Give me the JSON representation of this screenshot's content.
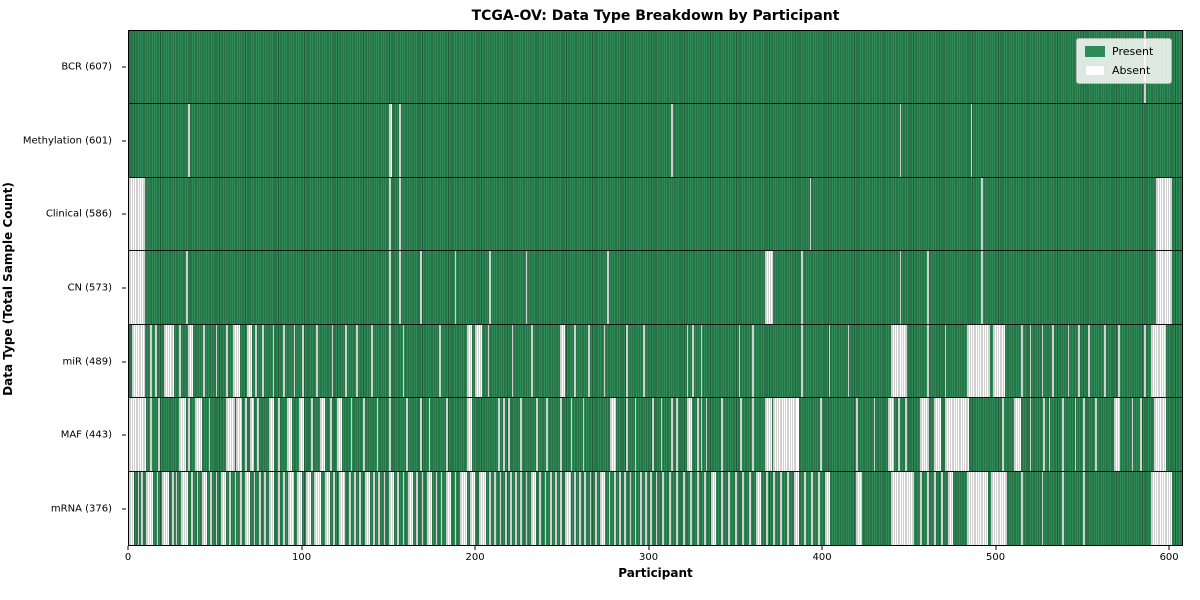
{
  "title": "TCGA-OV: Data Type Breakdown by Participant",
  "axes": {
    "xlabel": "Participant",
    "ylabel": "Data Type (Total Sample Count)",
    "x_tick_labels": [
      "0",
      "100",
      "200",
      "300",
      "400",
      "500",
      "600"
    ],
    "x_tick_values": [
      0,
      100,
      200,
      300,
      400,
      500,
      600
    ]
  },
  "legend": {
    "items": [
      {
        "label": "Present",
        "color": "#2e8b57"
      },
      {
        "label": "Absent",
        "color": "#ffffff"
      }
    ]
  },
  "colors": {
    "present_fill": "#2e8b57",
    "present_edge": "#1d5c39",
    "absent_fill": "#ffffff",
    "absent_edge": "#a0a0a0",
    "axis": "#000000",
    "background": "#ffffff"
  },
  "chart_data": {
    "type": "heatmap",
    "title": "TCGA-OV: Data Type Breakdown by Participant",
    "xlabel": "Participant",
    "ylabel": "Data Type (Total Sample Count)",
    "x_range": [
      0,
      608
    ],
    "n_participants": 608,
    "x_tick_values": [
      0,
      100,
      200,
      300,
      400,
      500,
      600
    ],
    "legend_entries": [
      "Present",
      "Absent"
    ],
    "grid": false,
    "legend_position": "upper right",
    "note": "Rows ordered top-to-bottom. Cells are Present (green) except the listed absent participant-index ranges (inclusive), estimated from the image.",
    "rows": [
      {
        "data_type": "BCR",
        "label": "BCR (607)",
        "present_count": 607,
        "absent_ranges": [
          [
            586,
            586
          ]
        ]
      },
      {
        "data_type": "Methylation",
        "label": "Methylation (601)",
        "present_count": 601,
        "absent_ranges": [
          [
            34,
            34
          ],
          [
            150,
            151
          ],
          [
            156,
            156
          ],
          [
            313,
            313
          ],
          [
            445,
            445
          ],
          [
            486,
            486
          ]
        ]
      },
      {
        "data_type": "Clinical",
        "label": "Clinical (586)",
        "present_count": 586,
        "absent_ranges": [
          [
            0,
            8
          ],
          [
            150,
            150
          ],
          [
            156,
            156
          ],
          [
            393,
            393
          ],
          [
            492,
            492
          ],
          [
            593,
            601
          ]
        ]
      },
      {
        "data_type": "CN",
        "label": "CN (573)",
        "present_count": 573,
        "absent_ranges": [
          [
            0,
            8
          ],
          [
            33,
            33
          ],
          [
            150,
            150
          ],
          [
            156,
            156
          ],
          [
            168,
            168
          ],
          [
            188,
            188
          ],
          [
            208,
            208
          ],
          [
            229,
            229
          ],
          [
            276,
            276
          ],
          [
            367,
            371
          ],
          [
            388,
            388
          ],
          [
            445,
            445
          ],
          [
            461,
            461
          ],
          [
            492,
            492
          ],
          [
            593,
            601
          ]
        ]
      },
      {
        "data_type": "miR",
        "label": "miR (489)",
        "present_count": 489,
        "absent_ranges": [
          [
            2,
            8
          ],
          [
            12,
            12
          ],
          [
            15,
            15
          ],
          [
            20,
            25
          ],
          [
            29,
            29
          ],
          [
            34,
            36
          ],
          [
            43,
            43
          ],
          [
            50,
            50
          ],
          [
            56,
            56
          ],
          [
            60,
            63
          ],
          [
            68,
            70
          ],
          [
            73,
            73
          ],
          [
            77,
            77
          ],
          [
            83,
            83
          ],
          [
            89,
            89
          ],
          [
            95,
            95
          ],
          [
            100,
            100
          ],
          [
            108,
            108
          ],
          [
            117,
            117
          ],
          [
            125,
            125
          ],
          [
            131,
            131
          ],
          [
            140,
            140
          ],
          [
            150,
            150
          ],
          [
            158,
            158
          ],
          [
            179,
            179
          ],
          [
            195,
            197
          ],
          [
            200,
            203
          ],
          [
            207,
            207
          ],
          [
            221,
            221
          ],
          [
            232,
            232
          ],
          [
            249,
            251
          ],
          [
            257,
            257
          ],
          [
            265,
            265
          ],
          [
            274,
            274
          ],
          [
            287,
            287
          ],
          [
            297,
            297
          ],
          [
            322,
            322
          ],
          [
            325,
            325
          ],
          [
            330,
            330
          ],
          [
            352,
            352
          ],
          [
            360,
            360
          ],
          [
            388,
            388
          ],
          [
            404,
            404
          ],
          [
            415,
            415
          ],
          [
            440,
            448
          ],
          [
            461,
            461
          ],
          [
            471,
            471
          ],
          [
            484,
            496
          ],
          [
            499,
            505
          ],
          [
            515,
            515
          ],
          [
            520,
            520
          ],
          [
            527,
            527
          ],
          [
            533,
            533
          ],
          [
            542,
            542
          ],
          [
            548,
            548
          ],
          [
            554,
            554
          ],
          [
            563,
            563
          ],
          [
            571,
            571
          ],
          [
            586,
            586
          ],
          [
            590,
            598
          ]
        ]
      },
      {
        "data_type": "MAF",
        "label": "MAF (443)",
        "present_count": 443,
        "absent_ranges": [
          [
            0,
            9
          ],
          [
            12,
            12
          ],
          [
            17,
            17
          ],
          [
            29,
            32
          ],
          [
            34,
            34
          ],
          [
            38,
            41
          ],
          [
            46,
            46
          ],
          [
            56,
            60
          ],
          [
            62,
            64
          ],
          [
            67,
            67
          ],
          [
            70,
            71
          ],
          [
            74,
            74
          ],
          [
            81,
            83
          ],
          [
            86,
            86
          ],
          [
            91,
            93
          ],
          [
            98,
            100
          ],
          [
            105,
            105
          ],
          [
            110,
            112
          ],
          [
            116,
            116
          ],
          [
            120,
            122
          ],
          [
            128,
            128
          ],
          [
            135,
            135
          ],
          [
            143,
            143
          ],
          [
            150,
            150
          ],
          [
            160,
            160
          ],
          [
            168,
            168
          ],
          [
            173,
            173
          ],
          [
            183,
            183
          ],
          [
            195,
            197
          ],
          [
            213,
            213
          ],
          [
            216,
            216
          ],
          [
            219,
            219
          ],
          [
            226,
            226
          ],
          [
            235,
            235
          ],
          [
            241,
            241
          ],
          [
            249,
            249
          ],
          [
            255,
            255
          ],
          [
            262,
            262
          ],
          [
            278,
            280
          ],
          [
            287,
            287
          ],
          [
            292,
            292
          ],
          [
            302,
            302
          ],
          [
            307,
            307
          ],
          [
            313,
            313
          ],
          [
            316,
            316
          ],
          [
            322,
            324
          ],
          [
            328,
            328
          ],
          [
            330,
            330
          ],
          [
            333,
            333
          ],
          [
            342,
            342
          ],
          [
            353,
            353
          ],
          [
            360,
            360
          ],
          [
            367,
            370
          ],
          [
            372,
            386
          ],
          [
            399,
            399
          ],
          [
            420,
            420
          ],
          [
            430,
            430
          ],
          [
            438,
            441
          ],
          [
            444,
            444
          ],
          [
            448,
            448
          ],
          [
            457,
            461
          ],
          [
            465,
            468
          ],
          [
            471,
            484
          ],
          [
            504,
            504
          ],
          [
            511,
            514
          ],
          [
            520,
            520
          ],
          [
            528,
            528
          ],
          [
            531,
            531
          ],
          [
            539,
            539
          ],
          [
            546,
            546
          ],
          [
            551,
            551
          ],
          [
            558,
            558
          ],
          [
            569,
            571
          ],
          [
            579,
            579
          ],
          [
            584,
            584
          ],
          [
            592,
            598
          ]
        ]
      },
      {
        "data_type": "mRNA",
        "label": "mRNA (376)",
        "present_count": 376,
        "absent_ranges": [
          [
            0,
            2
          ],
          [
            5,
            5
          ],
          [
            7,
            7
          ],
          [
            10,
            13
          ],
          [
            16,
            16
          ],
          [
            19,
            22
          ],
          [
            25,
            25
          ],
          [
            27,
            27
          ],
          [
            30,
            33
          ],
          [
            36,
            36
          ],
          [
            39,
            39
          ],
          [
            42,
            44
          ],
          [
            47,
            47
          ],
          [
            50,
            50
          ],
          [
            53,
            55
          ],
          [
            58,
            58
          ],
          [
            61,
            61
          ],
          [
            64,
            64
          ],
          [
            67,
            69
          ],
          [
            72,
            72
          ],
          [
            75,
            75
          ],
          [
            78,
            78
          ],
          [
            81,
            83
          ],
          [
            86,
            86
          ],
          [
            89,
            89
          ],
          [
            92,
            94
          ],
          [
            97,
            99
          ],
          [
            102,
            104
          ],
          [
            107,
            110
          ],
          [
            113,
            115
          ],
          [
            118,
            118
          ],
          [
            121,
            124
          ],
          [
            127,
            127
          ],
          [
            130,
            130
          ],
          [
            133,
            133
          ],
          [
            136,
            138
          ],
          [
            141,
            141
          ],
          [
            144,
            144
          ],
          [
            147,
            147
          ],
          [
            150,
            152
          ],
          [
            155,
            155
          ],
          [
            158,
            158
          ],
          [
            161,
            163
          ],
          [
            166,
            166
          ],
          [
            169,
            169
          ],
          [
            172,
            174
          ],
          [
            177,
            177
          ],
          [
            180,
            180
          ],
          [
            183,
            185
          ],
          [
            188,
            188
          ],
          [
            191,
            194
          ],
          [
            197,
            199
          ],
          [
            202,
            205
          ],
          [
            208,
            208
          ],
          [
            211,
            211
          ],
          [
            214,
            214
          ],
          [
            217,
            217
          ],
          [
            220,
            220
          ],
          [
            223,
            223
          ],
          [
            226,
            226
          ],
          [
            229,
            229
          ],
          [
            232,
            234
          ],
          [
            237,
            237
          ],
          [
            240,
            240
          ],
          [
            243,
            243
          ],
          [
            246,
            246
          ],
          [
            249,
            249
          ],
          [
            252,
            254
          ],
          [
            257,
            257
          ],
          [
            260,
            260
          ],
          [
            263,
            263
          ],
          [
            266,
            266
          ],
          [
            269,
            269
          ],
          [
            272,
            274
          ],
          [
            277,
            277
          ],
          [
            280,
            280
          ],
          [
            283,
            283
          ],
          [
            286,
            286
          ],
          [
            289,
            289
          ],
          [
            292,
            292
          ],
          [
            295,
            295
          ],
          [
            298,
            298
          ],
          [
            301,
            301
          ],
          [
            304,
            304
          ],
          [
            308,
            308
          ],
          [
            312,
            312
          ],
          [
            316,
            316
          ],
          [
            320,
            320
          ],
          [
            324,
            324
          ],
          [
            328,
            328
          ],
          [
            332,
            332
          ],
          [
            336,
            338
          ],
          [
            342,
            342
          ],
          [
            346,
            346
          ],
          [
            350,
            350
          ],
          [
            354,
            354
          ],
          [
            358,
            358
          ],
          [
            362,
            364
          ],
          [
            368,
            368
          ],
          [
            372,
            372
          ],
          [
            376,
            376
          ],
          [
            380,
            380
          ],
          [
            384,
            386
          ],
          [
            390,
            390
          ],
          [
            394,
            394
          ],
          [
            398,
            398
          ],
          [
            402,
            404
          ],
          [
            420,
            422
          ],
          [
            440,
            452
          ],
          [
            457,
            457
          ],
          [
            461,
            461
          ],
          [
            465,
            465
          ],
          [
            469,
            469
          ],
          [
            473,
            475
          ],
          [
            484,
            495
          ],
          [
            498,
            506
          ],
          [
            515,
            515
          ],
          [
            527,
            527
          ],
          [
            539,
            539
          ],
          [
            551,
            551
          ],
          [
            590,
            601
          ]
        ]
      }
    ]
  }
}
